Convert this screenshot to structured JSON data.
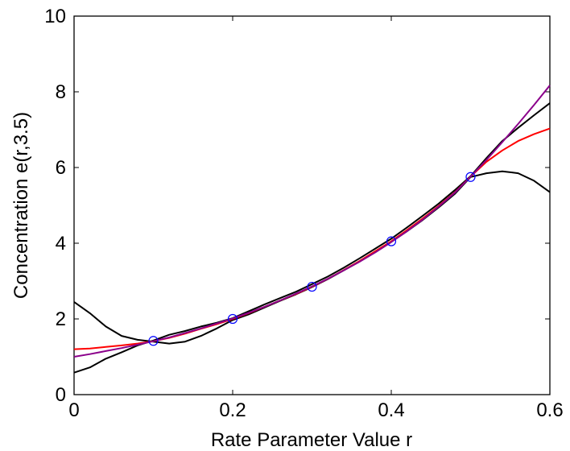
{
  "chart_data": {
    "type": "line",
    "title": "",
    "xlabel": "Rate Parameter Value r",
    "ylabel": "Concentration e(r,3.5)",
    "xlim": [
      0,
      0.6
    ],
    "ylim": [
      0,
      10
    ],
    "xticks": [
      0,
      0.2,
      0.4,
      0.6
    ],
    "xtick_labels": [
      "0",
      "0.2",
      "0.4",
      "0.6"
    ],
    "yticks": [
      0,
      2,
      4,
      6,
      8,
      10
    ],
    "ytick_labels": [
      "0",
      "2",
      "4",
      "6",
      "8",
      "10"
    ],
    "grid": false,
    "legend": "none",
    "series": [
      {
        "color": "#000000",
        "x": [
          0,
          0.02,
          0.04,
          0.06,
          0.08,
          0.1,
          0.12,
          0.14,
          0.16,
          0.18,
          0.2,
          0.22,
          0.24,
          0.26,
          0.28,
          0.3,
          0.32,
          0.34,
          0.36,
          0.38,
          0.4,
          0.42,
          0.44,
          0.46,
          0.48,
          0.5,
          0.52,
          0.54,
          0.56,
          0.58,
          0.6
        ],
        "y": [
          2.45,
          2.15,
          1.8,
          1.55,
          1.45,
          1.4,
          1.35,
          1.4,
          1.55,
          1.75,
          1.97,
          2.12,
          2.3,
          2.48,
          2.65,
          2.84,
          3.05,
          3.28,
          3.52,
          3.77,
          4.04,
          4.32,
          4.62,
          4.95,
          5.3,
          5.75,
          5.85,
          5.9,
          5.85,
          5.65,
          5.35
        ]
      },
      {
        "color": "#000000",
        "x": [
          0,
          0.02,
          0.04,
          0.06,
          0.08,
          0.1,
          0.12,
          0.14,
          0.16,
          0.18,
          0.2,
          0.22,
          0.24,
          0.26,
          0.28,
          0.3,
          0.32,
          0.34,
          0.36,
          0.38,
          0.4,
          0.42,
          0.44,
          0.46,
          0.48,
          0.5,
          0.52,
          0.54,
          0.56,
          0.58,
          0.6
        ],
        "y": [
          0.58,
          0.72,
          0.95,
          1.12,
          1.3,
          1.43,
          1.58,
          1.68,
          1.8,
          1.9,
          2.02,
          2.2,
          2.38,
          2.55,
          2.72,
          2.92,
          3.12,
          3.35,
          3.6,
          3.86,
          4.12,
          4.42,
          4.73,
          5.05,
          5.4,
          5.77,
          6.25,
          6.7,
          7.05,
          7.38,
          7.7
        ]
      },
      {
        "color": "#ff0000",
        "x": [
          0,
          0.02,
          0.04,
          0.06,
          0.08,
          0.1,
          0.12,
          0.14,
          0.16,
          0.18,
          0.2,
          0.22,
          0.24,
          0.26,
          0.28,
          0.3,
          0.32,
          0.34,
          0.36,
          0.38,
          0.4,
          0.42,
          0.44,
          0.46,
          0.48,
          0.5,
          0.52,
          0.54,
          0.56,
          0.58,
          0.6
        ],
        "y": [
          1.2,
          1.22,
          1.26,
          1.3,
          1.35,
          1.41,
          1.5,
          1.61,
          1.74,
          1.86,
          2.0,
          2.15,
          2.32,
          2.49,
          2.66,
          2.85,
          3.06,
          3.29,
          3.53,
          3.79,
          4.05,
          4.35,
          4.66,
          4.99,
          5.34,
          5.76,
          6.15,
          6.45,
          6.7,
          6.88,
          7.03
        ]
      },
      {
        "color": "#8b008b",
        "x": [
          0,
          0.02,
          0.04,
          0.06,
          0.08,
          0.1,
          0.12,
          0.14,
          0.16,
          0.18,
          0.2,
          0.22,
          0.24,
          0.26,
          0.28,
          0.3,
          0.32,
          0.34,
          0.36,
          0.38,
          0.4,
          0.42,
          0.44,
          0.46,
          0.48,
          0.5,
          0.52,
          0.54,
          0.56,
          0.58,
          0.6
        ],
        "y": [
          1.0,
          1.07,
          1.15,
          1.23,
          1.32,
          1.41,
          1.51,
          1.63,
          1.75,
          1.88,
          2.01,
          2.16,
          2.32,
          2.49,
          2.67,
          2.86,
          3.06,
          3.28,
          3.51,
          3.76,
          4.03,
          4.32,
          4.63,
          4.97,
          5.33,
          5.76,
          6.2,
          6.67,
          7.15,
          7.65,
          8.17
        ]
      }
    ],
    "markers": {
      "color": "#0000ff",
      "shape": "circle",
      "x": [
        0.1,
        0.2,
        0.3,
        0.4,
        0.5
      ],
      "y": [
        1.42,
        2.0,
        2.85,
        4.05,
        5.75
      ]
    }
  }
}
